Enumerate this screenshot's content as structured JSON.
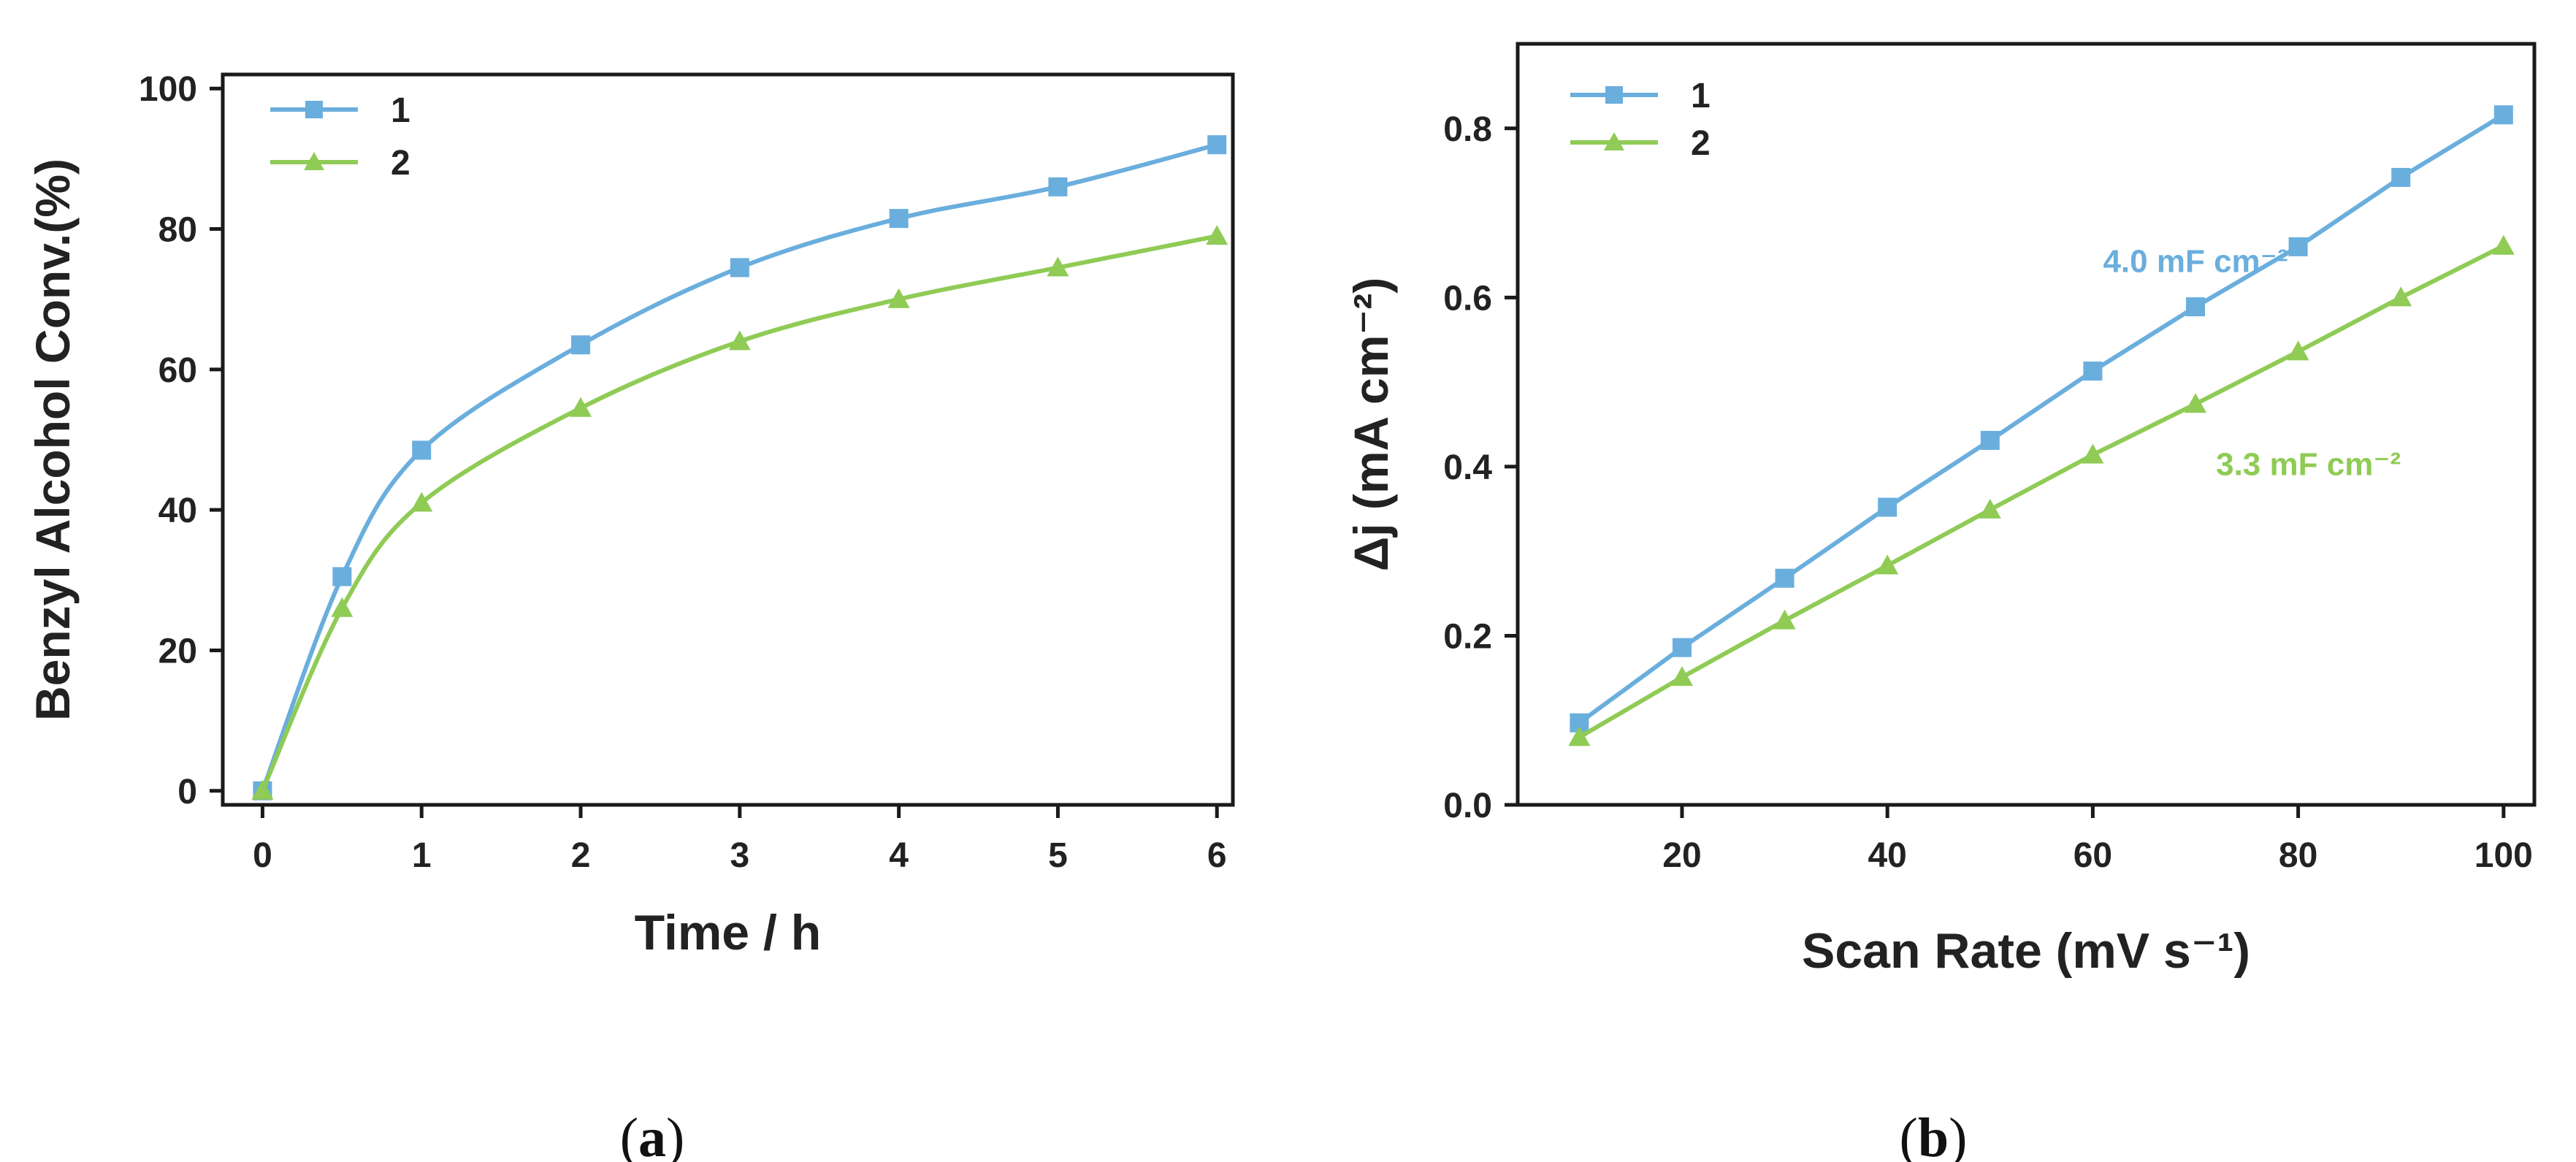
{
  "colors": {
    "series1": "#6AAEDD",
    "series2": "#8FCB55",
    "axis": "#1a1a1a"
  },
  "chart_data": [
    {
      "panel": "a",
      "type": "line",
      "caption_open": "(",
      "caption_letter": "a",
      "caption_close": ")",
      "xlabel": "Time / h",
      "ylabel": "Benzyl Alcohol Conv.(%)",
      "xlim": [
        -0.25,
        6.1
      ],
      "ylim": [
        -2,
        102
      ],
      "xticks": [
        0,
        1,
        2,
        3,
        4,
        5,
        6
      ],
      "yticks": [
        0,
        20,
        40,
        60,
        80,
        100
      ],
      "legend_position": "top-left",
      "smooth": true,
      "series": [
        {
          "name": "1",
          "marker": "square",
          "color": "#6AAEDD",
          "x": [
            0,
            0.5,
            1,
            2,
            3,
            4,
            5,
            6
          ],
          "y": [
            0,
            30.5,
            48.5,
            63.5,
            74.5,
            81.5,
            86,
            92
          ]
        },
        {
          "name": "2",
          "marker": "triangle",
          "color": "#8FCB55",
          "x": [
            0,
            0.5,
            1,
            2,
            3,
            4,
            5,
            6
          ],
          "y": [
            0,
            26,
            41,
            54.5,
            64,
            70,
            74.5,
            79
          ]
        }
      ],
      "annotations": []
    },
    {
      "panel": "b",
      "type": "line",
      "caption_open": "(",
      "caption_letter": "b",
      "caption_close": ")",
      "xlabel": "Scan Rate (mV s⁻¹)",
      "ylabel": "Δj (mA cm⁻²)",
      "xlim": [
        4,
        103
      ],
      "ylim": [
        0,
        0.9
      ],
      "xticks": [
        20,
        40,
        60,
        80,
        100
      ],
      "yticks": [
        0.0,
        0.2,
        0.4,
        0.6,
        0.8
      ],
      "yticklabels": [
        "0.0",
        "0.2",
        "0.4",
        "0.6",
        "0.8"
      ],
      "legend_position": "top-left",
      "smooth": false,
      "series": [
        {
          "name": "1",
          "marker": "square",
          "color": "#6AAEDD",
          "x": [
            10,
            20,
            30,
            40,
            50,
            60,
            70,
            80,
            90,
            100
          ],
          "y": [
            0.097,
            0.186,
            0.268,
            0.352,
            0.431,
            0.513,
            0.589,
            0.66,
            0.742,
            0.816
          ]
        },
        {
          "name": "2",
          "marker": "triangle",
          "color": "#8FCB55",
          "x": [
            10,
            20,
            30,
            40,
            50,
            60,
            70,
            80,
            90,
            100
          ],
          "y": [
            0.08,
            0.151,
            0.218,
            0.283,
            0.349,
            0.414,
            0.474,
            0.536,
            0.6,
            0.661
          ]
        }
      ],
      "annotations": [
        {
          "text": "4.0 mF cm⁻²",
          "x": 70,
          "y": 0.63,
          "color": "#6AAEDD",
          "series": "1"
        },
        {
          "text": "3.3 mF cm⁻²",
          "x": 81,
          "y": 0.39,
          "color": "#8FCB55",
          "series": "2"
        }
      ]
    }
  ]
}
